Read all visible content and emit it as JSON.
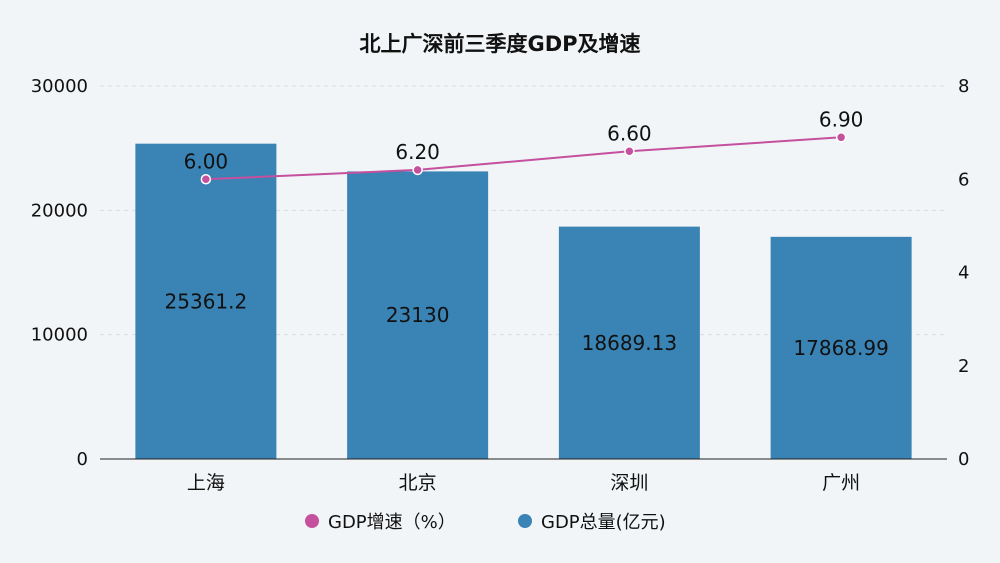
{
  "chart_data": {
    "type": "bar",
    "title": "北上广深前三季度GDP及增速",
    "categories": [
      "上海",
      "北京",
      "深圳",
      "广州"
    ],
    "series": [
      {
        "name": "GDP总量(亿元)",
        "type": "bar",
        "axis": "left",
        "values": [
          25361.2,
          23130,
          18689.13,
          17868.99
        ],
        "labels": [
          "25361.2",
          "23130",
          "18689.13",
          "17868.99"
        ],
        "color": "#3a83b5"
      },
      {
        "name": "GDP增速（%）",
        "type": "line",
        "axis": "right",
        "values": [
          6.0,
          6.2,
          6.6,
          6.9
        ],
        "labels": [
          "6.00",
          "6.20",
          "6.60",
          "6.90"
        ],
        "color": "#c4509e"
      }
    ],
    "y_left": {
      "min": 0,
      "max": 30000,
      "ticks": [
        0,
        10000,
        20000,
        30000
      ]
    },
    "y_right": {
      "min": 0,
      "max": 8,
      "ticks": [
        0,
        2,
        4,
        6,
        8
      ]
    },
    "grid": true,
    "legend": "bottom-center"
  }
}
